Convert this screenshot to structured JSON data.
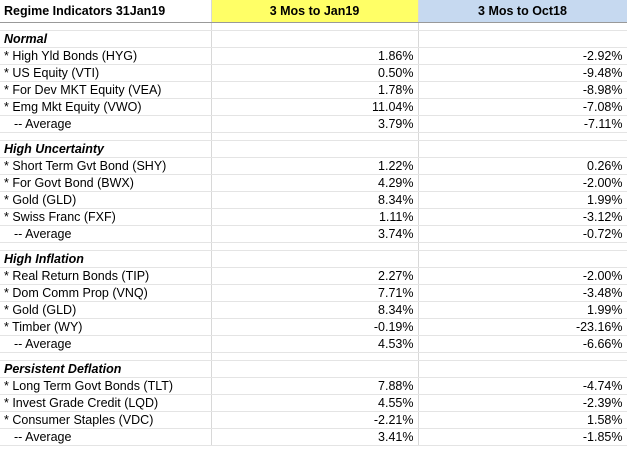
{
  "header": {
    "title": "Regime Indicators 31Jan19",
    "col1": "3 Mos to Jan19",
    "col2": "3 Mos to Oct18"
  },
  "sections": [
    {
      "title": "Normal",
      "rows": [
        [
          "* High Yld Bonds (HYG)",
          "1.86%",
          "-2.92%"
        ],
        [
          "* US Equity (VTI)",
          "0.50%",
          "-9.48%"
        ],
        [
          "* For Dev MKT Equity (VEA)",
          "1.78%",
          "-8.98%"
        ],
        [
          "* Emg Mkt Equity (VWO)",
          "11.04%",
          "-7.08%"
        ]
      ],
      "average": [
        "-- Average",
        "3.79%",
        "-7.11%"
      ]
    },
    {
      "title": "High Uncertainty",
      "rows": [
        [
          "* Short Term Gvt Bond (SHY)",
          "1.22%",
          "0.26%"
        ],
        [
          "* For Govt Bond (BWX)",
          "4.29%",
          "-2.00%"
        ],
        [
          "* Gold (GLD)",
          "8.34%",
          "1.99%"
        ],
        [
          "* Swiss Franc (FXF)",
          "1.11%",
          "-3.12%"
        ]
      ],
      "average": [
        "-- Average",
        "3.74%",
        "-0.72%"
      ]
    },
    {
      "title": "High Inflation",
      "rows": [
        [
          "* Real Return Bonds (TIP)",
          "2.27%",
          "-2.00%"
        ],
        [
          "* Dom Comm Prop (VNQ)",
          "7.71%",
          "-3.48%"
        ],
        [
          "* Gold (GLD)",
          "8.34%",
          "1.99%"
        ],
        [
          "* Timber (WY)",
          "-0.19%",
          "-23.16%"
        ]
      ],
      "average": [
        "-- Average",
        "4.53%",
        "-6.66%"
      ]
    },
    {
      "title": "Persistent Deflation",
      "rows": [
        [
          "* Long Term Govt Bonds (TLT)",
          "7.88%",
          "-4.74%"
        ],
        [
          "* Invest Grade Credit (LQD)",
          "4.55%",
          "-2.39%"
        ],
        [
          "* Consumer Staples (VDC)",
          "-2.21%",
          "1.58%"
        ]
      ],
      "average": [
        "-- Average",
        "3.41%",
        "-1.85%"
      ]
    }
  ]
}
